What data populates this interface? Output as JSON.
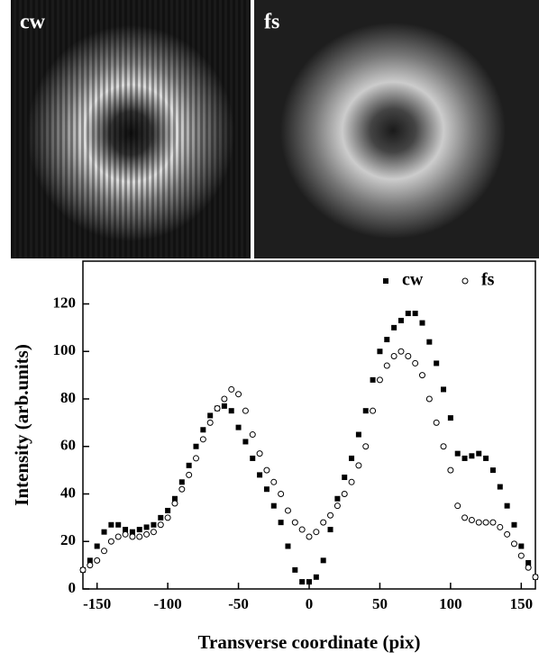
{
  "panels": {
    "labels": [
      "cw",
      "fs"
    ]
  },
  "chart_data": {
    "type": "scatter",
    "x_label": "Transverse coordinate (pix)",
    "y_label": "Intensity (arb.units)",
    "x": [
      -160,
      -155,
      -150,
      -145,
      -140,
      -135,
      -130,
      -125,
      -120,
      -115,
      -110,
      -105,
      -100,
      -95,
      -90,
      -85,
      -80,
      -75,
      -70,
      -65,
      -60,
      -55,
      -50,
      -45,
      -40,
      -35,
      -30,
      -25,
      -20,
      -15,
      -10,
      -5,
      0,
      5,
      10,
      15,
      20,
      25,
      30,
      35,
      40,
      45,
      50,
      55,
      60,
      65,
      70,
      75,
      80,
      85,
      90,
      95,
      100,
      105,
      110,
      115,
      120,
      125,
      130,
      135,
      140,
      145,
      150,
      155,
      160
    ],
    "series": [
      {
        "name": "cw",
        "color": "#000000",
        "marker": "square",
        "values": [
          8,
          12,
          18,
          24,
          27,
          27,
          25,
          24,
          25,
          26,
          27,
          30,
          33,
          38,
          45,
          52,
          60,
          67,
          73,
          76,
          77,
          75,
          68,
          62,
          55,
          48,
          42,
          35,
          28,
          18,
          8,
          3,
          3,
          5,
          12,
          25,
          38,
          47,
          55,
          65,
          75,
          88,
          100,
          105,
          110,
          113,
          116,
          116,
          112,
          104,
          95,
          84,
          72,
          57,
          55,
          56,
          57,
          55,
          50,
          43,
          35,
          27,
          18,
          11,
          5
        ]
      },
      {
        "name": "fs",
        "color": "#000000",
        "marker": "circle",
        "values": [
          8,
          10,
          12,
          16,
          20,
          22,
          23,
          22,
          22,
          23,
          24,
          27,
          30,
          36,
          42,
          48,
          55,
          63,
          70,
          76,
          80,
          84,
          82,
          75,
          65,
          57,
          50,
          45,
          40,
          33,
          28,
          25,
          22,
          24,
          28,
          31,
          35,
          40,
          45,
          52,
          60,
          75,
          88,
          94,
          98,
          100,
          98,
          95,
          90,
          80,
          70,
          60,
          50,
          35,
          30,
          29,
          28,
          28,
          28,
          26,
          23,
          19,
          14,
          9,
          5
        ]
      }
    ],
    "xlim": [
      -160,
      160
    ],
    "ylim": [
      0,
      138
    ],
    "xticks": [
      -150,
      -100,
      -50,
      0,
      50,
      100,
      150
    ],
    "yticks": [
      0,
      20,
      40,
      60,
      80,
      100,
      120
    ],
    "legend": "top-right",
    "grid": false
  }
}
